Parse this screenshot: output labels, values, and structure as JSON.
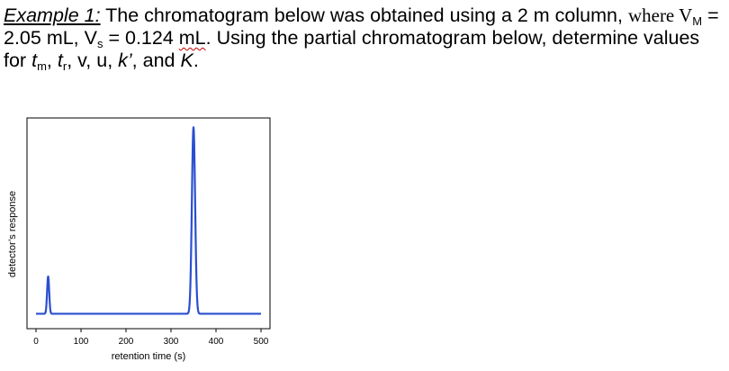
{
  "problem": {
    "example_label": "Example 1:",
    "text_1": " The chromatogram below was obtained using a 2 m column, ",
    "text_where": "where V",
    "sub_M": "M",
    "text_2": " = 2.05 mL, V",
    "sub_s": "s",
    "text_3": " = 0.124 ",
    "text_ml": "mL",
    "text_4": ". Using the partial chromatogram below, determine values for ",
    "var_t": "t",
    "sub_m": "m",
    "sep_1": ", ",
    "var_t2": "t",
    "sub_r": "r",
    "text_5": ", v, u, ",
    "var_k": "k’",
    "text_6": ", and ",
    "var_K": "K",
    "text_7": "."
  },
  "chart_data": {
    "type": "line",
    "xlabel": "retention time (s)",
    "ylabel": "detector’s response",
    "xlim": [
      -20,
      520
    ],
    "ylim": [
      -0.08,
      1.05
    ],
    "x_ticks": [
      0,
      100,
      200,
      300,
      400,
      500
    ],
    "x_tick_labels": [
      "0",
      "100",
      "200",
      "300",
      "400",
      "500"
    ],
    "show_y_ticks": false,
    "grid": false,
    "line_color": "#2a4fcf",
    "baseline": 0.0,
    "peaks": [
      {
        "retention_time": 27,
        "height": 0.2,
        "width_sd": 2.3
      },
      {
        "retention_time": 350,
        "height": 1.0,
        "width_sd": 3.6
      }
    ]
  }
}
